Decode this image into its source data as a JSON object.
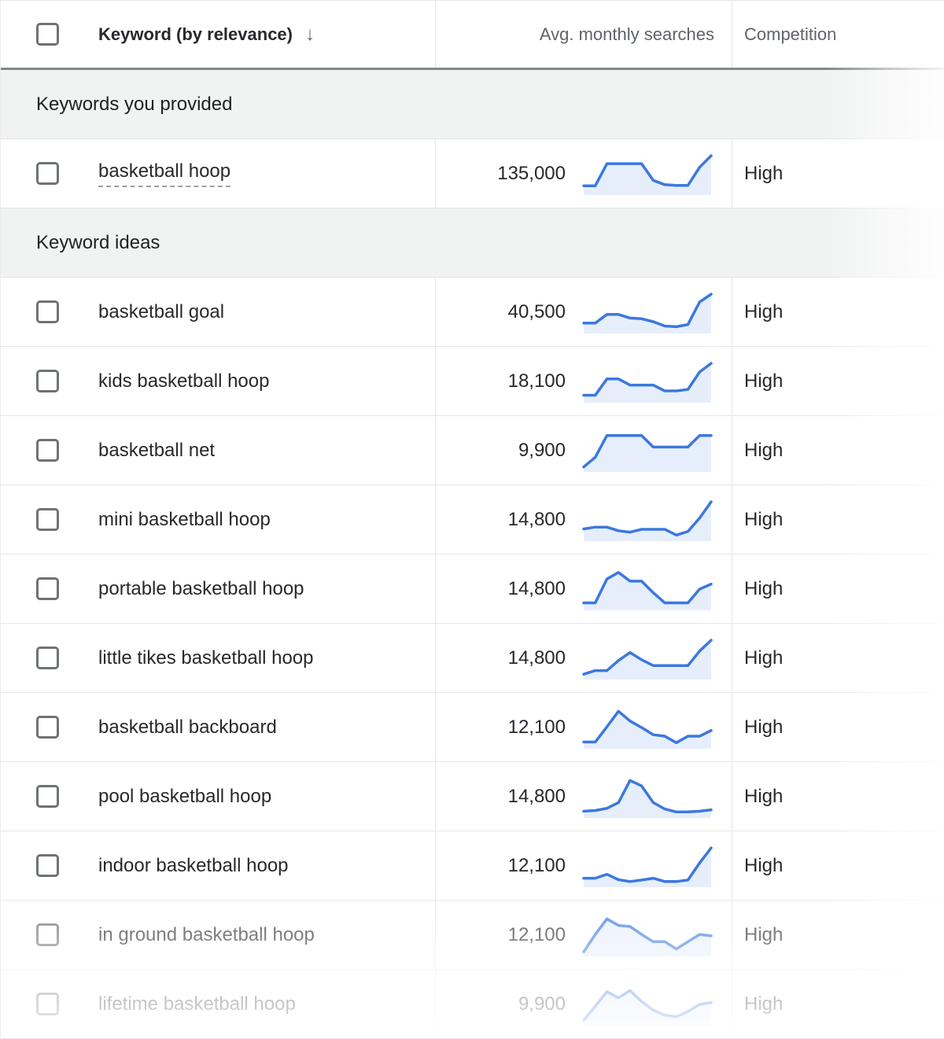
{
  "header": {
    "keyword_col": "Keyword (by relevance)",
    "sort_icon": "arrow-down",
    "sort_glyph": "↓",
    "searches_col": "Avg. monthly searches",
    "competition_col": "Competition"
  },
  "colors": {
    "spark_line": "#3b78e0",
    "spark_fill": "#e7eefb",
    "header_text": "#5f6368",
    "section_bg": "#f1f2f2",
    "header_border": "#84878a"
  },
  "chart_data": {
    "type": "line",
    "note": "12-point monthly trend sparklines, normalized 0-1, one per keyword row; values listed in sections.rows.trend"
  },
  "sections": [
    {
      "label": "Keywords you provided",
      "rows": [
        {
          "keyword": "basketball hoop",
          "searches": "135,000",
          "competition": "High",
          "provided": true,
          "trend": [
            0.17,
            0.17,
            0.78,
            0.78,
            0.78,
            0.78,
            0.32,
            0.2,
            0.18,
            0.18,
            0.68,
            1.0
          ]
        }
      ]
    },
    {
      "label": "Keyword ideas",
      "rows": [
        {
          "keyword": "basketball goal",
          "searches": "40,500",
          "competition": "High",
          "provided": false,
          "trend": [
            0.2,
            0.2,
            0.44,
            0.44,
            0.34,
            0.32,
            0.24,
            0.12,
            0.1,
            0.16,
            0.78,
            1.0
          ]
        },
        {
          "keyword": "kids basketball hoop",
          "searches": "18,100",
          "competition": "High",
          "provided": false,
          "trend": [
            0.12,
            0.12,
            0.57,
            0.57,
            0.4,
            0.4,
            0.4,
            0.24,
            0.24,
            0.28,
            0.76,
            1.0
          ]
        },
        {
          "keyword": "basketball net",
          "searches": "9,900",
          "competition": "High",
          "provided": false,
          "trend": [
            0.05,
            0.32,
            0.92,
            0.92,
            0.92,
            0.92,
            0.6,
            0.6,
            0.6,
            0.6,
            0.92,
            0.92
          ]
        },
        {
          "keyword": "mini basketball hoop",
          "searches": "14,800",
          "competition": "High",
          "provided": false,
          "trend": [
            0.25,
            0.3,
            0.3,
            0.2,
            0.16,
            0.24,
            0.24,
            0.24,
            0.08,
            0.18,
            0.55,
            1.0
          ]
        },
        {
          "keyword": "portable basketball hoop",
          "searches": "14,800",
          "competition": "High",
          "provided": false,
          "trend": [
            0.12,
            0.12,
            0.78,
            0.96,
            0.72,
            0.72,
            0.4,
            0.12,
            0.12,
            0.12,
            0.5,
            0.64
          ]
        },
        {
          "keyword": "little tikes basketball hoop",
          "searches": "14,800",
          "competition": "High",
          "provided": false,
          "trend": [
            0.06,
            0.16,
            0.16,
            0.44,
            0.66,
            0.46,
            0.3,
            0.3,
            0.3,
            0.3,
            0.7,
            1.0
          ]
        },
        {
          "keyword": "basketball backboard",
          "searches": "12,100",
          "competition": "High",
          "provided": false,
          "trend": [
            0.1,
            0.1,
            0.52,
            0.95,
            0.68,
            0.5,
            0.3,
            0.26,
            0.08,
            0.26,
            0.26,
            0.42
          ]
        },
        {
          "keyword": "pool basketball hoop",
          "searches": "14,800",
          "competition": "High",
          "provided": false,
          "trend": [
            0.1,
            0.12,
            0.18,
            0.34,
            0.95,
            0.8,
            0.34,
            0.16,
            0.08,
            0.08,
            0.1,
            0.14
          ]
        },
        {
          "keyword": "indoor basketball hoop",
          "searches": "12,100",
          "competition": "High",
          "provided": false,
          "trend": [
            0.16,
            0.16,
            0.27,
            0.12,
            0.07,
            0.11,
            0.16,
            0.07,
            0.07,
            0.11,
            0.58,
            1.0
          ]
        },
        {
          "keyword": "in ground basketball hoop",
          "searches": "12,100",
          "competition": "High",
          "provided": false,
          "trend": [
            0.04,
            0.52,
            0.95,
            0.77,
            0.74,
            0.52,
            0.32,
            0.32,
            0.12,
            0.32,
            0.52,
            0.48
          ]
        },
        {
          "keyword": "lifetime basketball hoop",
          "searches": "9,900",
          "competition": "High",
          "provided": false,
          "trend": [
            0.06,
            0.45,
            0.85,
            0.68,
            0.88,
            0.58,
            0.34,
            0.2,
            0.16,
            0.3,
            0.5,
            0.55
          ]
        }
      ]
    }
  ]
}
